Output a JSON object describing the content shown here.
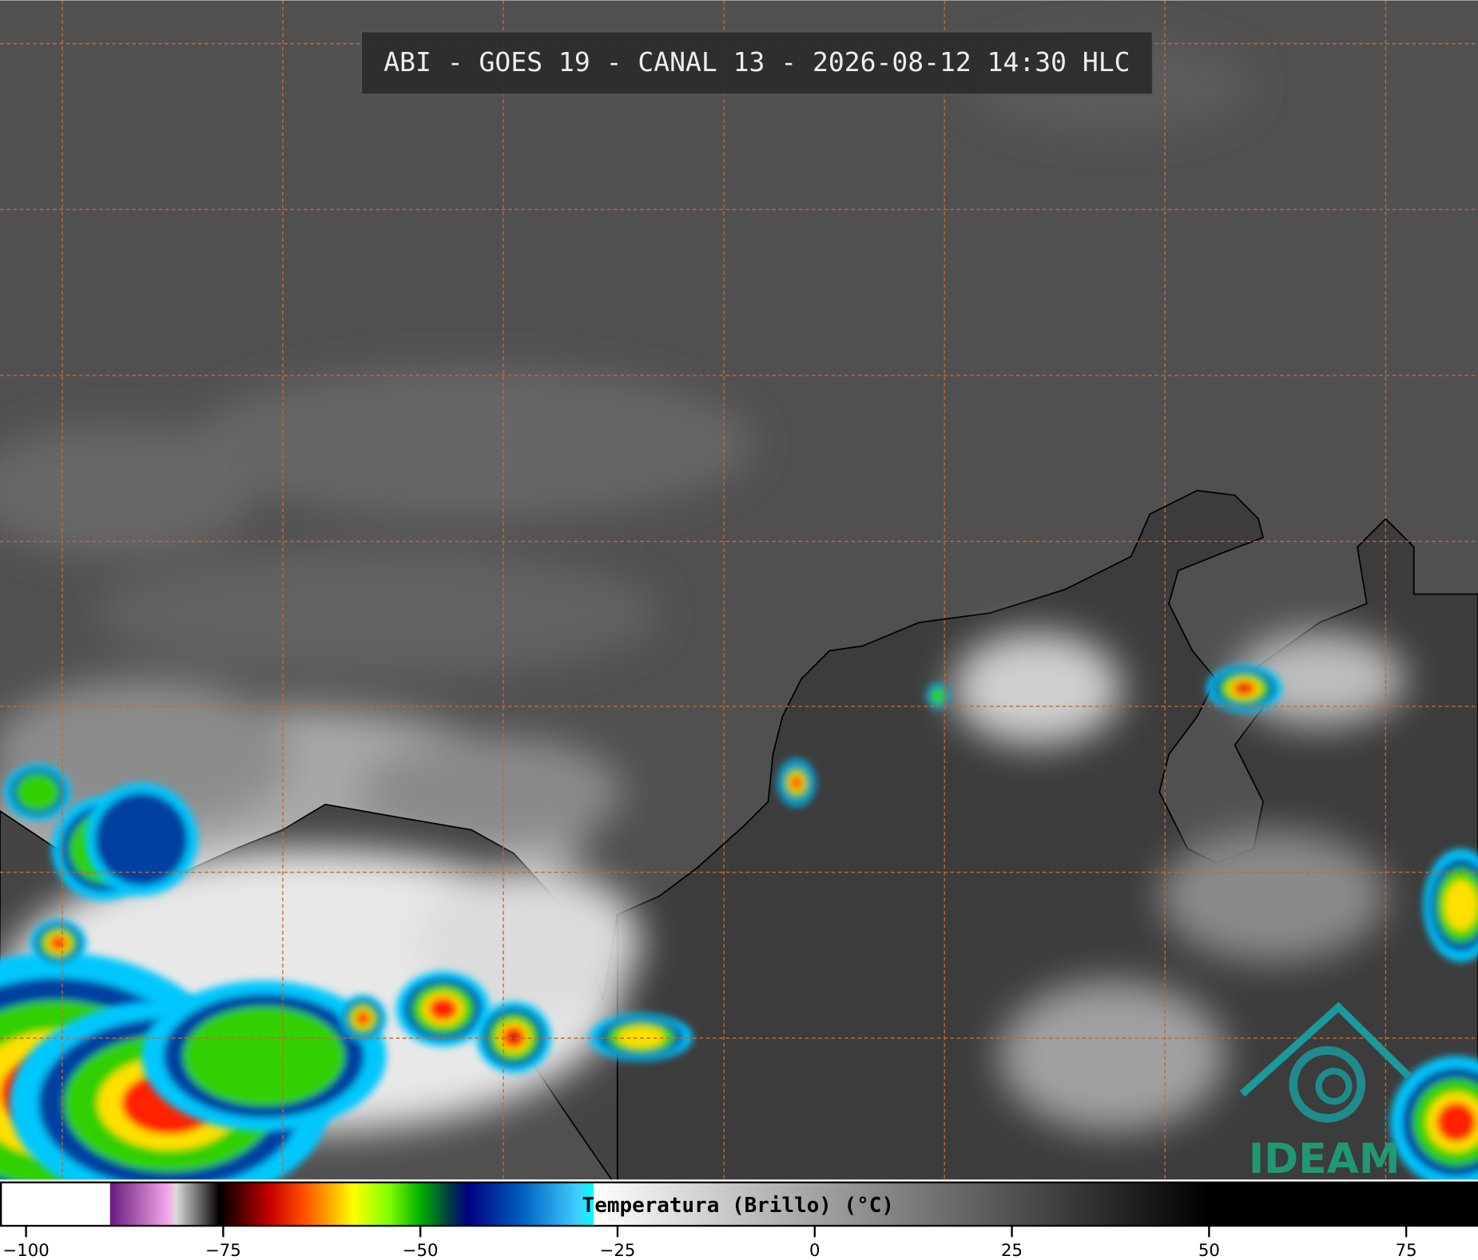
{
  "title": "ABI - GOES 19 - CANAL 13 - 2026-08-12 14:30 HLC",
  "logo": "IDEAM",
  "colorbar": {
    "label": "Temperatura (Brillo) (°C)",
    "xlim": [
      -103.3,
      84.1
    ],
    "xticks": [
      {
        "value": -100,
        "label": "−100"
      },
      {
        "value": -75,
        "label": "−75"
      },
      {
        "value": -50,
        "label": "−50"
      },
      {
        "value": -25,
        "label": "−25"
      },
      0,
      25,
      50,
      75
    ],
    "colormap": [
      {
        "value": -103.3,
        "color": "#ffffff"
      },
      {
        "value": -89.4,
        "color": "#ffffff"
      },
      {
        "value": -89.3,
        "color": "#6a1a80"
      },
      {
        "value": -82,
        "color": "#f4a8e8"
      },
      {
        "value": -81,
        "color": "#dcdcdc"
      },
      {
        "value": -77,
        "color": "#404040"
      },
      {
        "value": -75.5,
        "color": "#000000"
      },
      {
        "value": -73,
        "color": "#4a0000"
      },
      {
        "value": -69,
        "color": "#c80000"
      },
      {
        "value": -65,
        "color": "#ff4a00"
      },
      {
        "value": -62,
        "color": "#ff9a00"
      },
      {
        "value": -58.5,
        "color": "#ffff00"
      },
      {
        "value": -54,
        "color": "#80ff00"
      },
      {
        "value": -50,
        "color": "#00b000"
      },
      {
        "value": -46.5,
        "color": "#004040"
      },
      {
        "value": -44,
        "color": "#000080"
      },
      {
        "value": -37,
        "color": "#0060c0"
      },
      {
        "value": -30,
        "color": "#40d0ff"
      },
      {
        "value": -28.1,
        "color": "#00ffff"
      },
      {
        "value": -28,
        "color": "#ffffff"
      },
      {
        "value": 50,
        "color": "#000000"
      },
      {
        "value": 84.1,
        "color": "#000000"
      }
    ]
  }
}
